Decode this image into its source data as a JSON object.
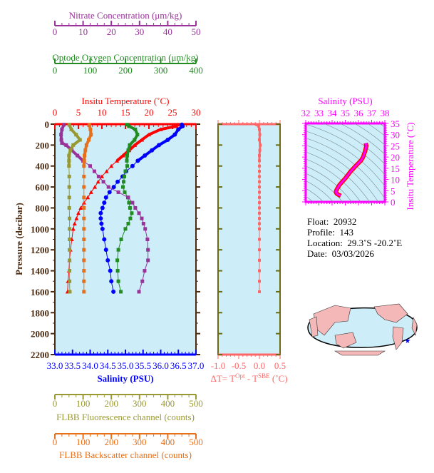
{
  "chart_data": [
    {
      "type": "line",
      "name": "profile-plot",
      "ylabel": "Pressure (decibar)",
      "ylim": [
        2200,
        0
      ],
      "yticks": [
        0,
        200,
        400,
        600,
        800,
        1000,
        1200,
        1400,
        1600,
        1800,
        2000,
        2200
      ],
      "grid": false,
      "background": "#cdeef8",
      "axes": [
        {
          "id": "nitrate",
          "title": "Nitrate Concentration (μm/kg)",
          "position": "top",
          "range": [
            0,
            50
          ],
          "ticks": [
            0,
            10,
            20,
            30,
            40,
            50
          ],
          "color": "#993399"
        },
        {
          "id": "oxygen",
          "title": "Optode Oxygen Concentration (μm/kg)",
          "position": "top",
          "range": [
            0,
            400
          ],
          "ticks": [
            0,
            100,
            200,
            300,
            400
          ],
          "color": "#228b22"
        },
        {
          "id": "temperature",
          "title": "Insitu Temperature (˚C)",
          "position": "top",
          "range": [
            0,
            30
          ],
          "ticks": [
            0,
            5,
            10,
            15,
            20,
            25,
            30
          ],
          "color": "#ff0000"
        },
        {
          "id": "salinity",
          "title": "Salinity (PSU)",
          "position": "bottom",
          "range": [
            33,
            37
          ],
          "ticks": [
            "33.0",
            "33.5",
            "34.0",
            "34.5",
            "35.0",
            "35.5",
            "36.0",
            "36.5",
            "37.0"
          ],
          "color": "#0000ff"
        },
        {
          "id": "fluorescence",
          "title": "FLBB Fluorescence channel (counts)",
          "position": "bottom",
          "range": [
            0,
            500
          ],
          "ticks": [
            0,
            100,
            200,
            300,
            400,
            500
          ],
          "color": "#999933"
        },
        {
          "id": "backscatter",
          "title": "FLBB Backscatter channel (counts)",
          "position": "bottom",
          "range": [
            0,
            500
          ],
          "ticks": [
            0,
            100,
            200,
            300,
            400,
            500
          ],
          "color": "#e8701a"
        }
      ],
      "series": [
        {
          "axis": "temperature",
          "marker": "triangle",
          "pressure": [
            5,
            20,
            50,
            100,
            150,
            200,
            250,
            300,
            350,
            400,
            450,
            500,
            550,
            600,
            650,
            700,
            750,
            800,
            850,
            900,
            950,
            1000,
            1100,
            1200,
            1300,
            1400,
            1500,
            1600
          ],
          "values": [
            26.2,
            25.8,
            22.5,
            20.0,
            18.5,
            17.0,
            15.8,
            14.5,
            13.2,
            12.0,
            11.0,
            10.0,
            9.2,
            8.5,
            7.7,
            7.0,
            6.2,
            5.5,
            5.0,
            4.6,
            4.2,
            3.9,
            3.6,
            3.3,
            3.1,
            3.0,
            2.8,
            2.7
          ]
        },
        {
          "axis": "salinity",
          "marker": "circle",
          "pressure": [
            5,
            20,
            50,
            100,
            150,
            200,
            250,
            300,
            350,
            400,
            450,
            500,
            550,
            600,
            650,
            700,
            750,
            800,
            850,
            900,
            950,
            1000,
            1100,
            1200,
            1300,
            1400,
            1500,
            1600
          ],
          "values": [
            36.6,
            36.62,
            36.5,
            36.4,
            36.2,
            35.95,
            35.75,
            35.55,
            35.35,
            35.2,
            35.02,
            34.92,
            34.78,
            34.67,
            34.55,
            34.45,
            34.4,
            34.35,
            34.3,
            34.3,
            34.32,
            34.35,
            34.4,
            34.45,
            34.5,
            34.57,
            34.6,
            34.66
          ]
        },
        {
          "axis": "oxygen",
          "marker": "square",
          "pressure": [
            5,
            20,
            50,
            100,
            150,
            200,
            250,
            300,
            350,
            400,
            450,
            500,
            550,
            600,
            650,
            700,
            750,
            800,
            850,
            900,
            950,
            1000,
            1100,
            1200,
            1300,
            1400,
            1500,
            1600
          ],
          "values": [
            205,
            210,
            228,
            234,
            226,
            212,
            208,
            205,
            204,
            205,
            200,
            197,
            195,
            193,
            198,
            207,
            210,
            213,
            218,
            214,
            208,
            200,
            188,
            180,
            177,
            178,
            180,
            187
          ]
        },
        {
          "axis": "nitrate",
          "marker": "square",
          "pressure": [
            5,
            50,
            100,
            150,
            180,
            200,
            250,
            300,
            350,
            400,
            450,
            500,
            550,
            600,
            650,
            700,
            750,
            800,
            850,
            900,
            950,
            1000,
            1100,
            1200,
            1300,
            1400,
            1500,
            1600
          ],
          "values": [
            3.2,
            2.5,
            2.2,
            2.3,
            2.5,
            4.0,
            6.0,
            8.0,
            10.0,
            12.5,
            14.0,
            15.5,
            17.2,
            19.0,
            22.5,
            26.0,
            27.5,
            28.5,
            29.8,
            30.8,
            31.4,
            32.0,
            32.8,
            33.0,
            33.0,
            31.8,
            31.0,
            29.8
          ]
        },
        {
          "axis": "fluorescence",
          "marker": "square",
          "pressure": [
            5,
            50,
            100,
            150,
            200,
            250,
            300,
            350,
            400,
            500,
            600,
            700,
            800,
            900,
            1000,
            1100,
            1200,
            1300,
            1400,
            1500,
            1600
          ],
          "values": [
            51,
            58,
            75,
            89,
            65,
            55,
            50,
            50,
            50,
            51,
            51,
            51,
            51,
            52,
            52,
            52,
            52,
            52,
            52,
            52,
            53
          ]
        },
        {
          "axis": "backscatter",
          "marker": "square",
          "pressure": [
            5,
            50,
            100,
            150,
            200,
            250,
            300,
            350,
            400,
            500,
            600,
            700,
            800,
            900,
            1000,
            1100,
            1200,
            1300,
            1400,
            1500,
            1600
          ],
          "values": [
            122,
            126,
            128,
            120,
            112,
            108,
            105,
            104,
            103,
            103,
            103,
            103,
            103,
            103,
            103,
            103,
            103,
            103,
            103,
            103,
            103
          ]
        }
      ]
    },
    {
      "type": "line",
      "name": "delta-t-plot",
      "xlabel": "ΔT= T",
      "xlabel_sup1": "Opt",
      "xlabel_mid": " - T",
      "xlabel_sup2": "SBE",
      "xlabel_end": " (˚C)",
      "xlim": [
        -1.0,
        0.5
      ],
      "xticks": [
        "-1.0",
        "-0.5",
        "0.0",
        "0.5"
      ],
      "ylim": [
        2200,
        0
      ],
      "color": "#ff6666",
      "pressure": [
        5,
        20,
        50,
        100,
        150,
        200,
        250,
        300,
        350,
        400,
        450,
        500,
        550,
        600,
        650,
        700,
        750,
        800,
        850,
        900,
        950,
        1000,
        1100,
        1200,
        1300,
        1400,
        1500,
        1600
      ],
      "values": [
        -0.07,
        -0.02,
        0.0,
        0.01,
        0.0,
        0.02,
        0.01,
        0.0,
        0.0,
        0.0,
        0.0,
        0.0,
        0.0,
        0.0,
        0.0,
        0.0,
        0.0,
        0.0,
        0.0,
        0.0,
        0.0,
        0.0,
        0.0,
        0.0,
        0.0,
        0.0,
        0.0,
        0.0
      ]
    },
    {
      "type": "line",
      "name": "ts-diagram",
      "xlabel": "Salinity (PSU)",
      "ylabel": "Insitu Temperature (˚C)",
      "xlim": [
        32,
        38
      ],
      "ylim": [
        0,
        35
      ],
      "xticks": [
        32,
        33,
        34,
        35,
        36,
        37,
        38
      ],
      "yticks": [
        0,
        5,
        10,
        15,
        20,
        25,
        30,
        35
      ],
      "color": "#ff00ff",
      "salinity": [
        36.55,
        36.6,
        36.5,
        36.35,
        36.2,
        35.95,
        35.75,
        35.55,
        35.35,
        35.2,
        35.0,
        34.85,
        34.7,
        34.55,
        34.45,
        34.35,
        34.3,
        34.3,
        34.35,
        34.45,
        34.55,
        34.66
      ],
      "temperature": [
        26.2,
        25.0,
        22.5,
        20.0,
        18.5,
        17.0,
        15.8,
        14.5,
        13.2,
        12.0,
        10.5,
        9.5,
        8.5,
        7.5,
        6.5,
        5.5,
        4.8,
        4.2,
        3.7,
        3.3,
        3.0,
        2.7
      ]
    }
  ],
  "info": {
    "float_label": "Float:",
    "float_value": "20932",
    "profile_label": "Profile:",
    "profile_value": "143",
    "location_label": "Location:",
    "location_value": "29.3˚S  -20.2˚E",
    "date_label": "Date:",
    "date_value": "03/03/2026"
  },
  "map": {
    "land_color": "#f4b8b8",
    "ocean_color": "#cdeef8",
    "float_marker_color": "#0000ff"
  }
}
